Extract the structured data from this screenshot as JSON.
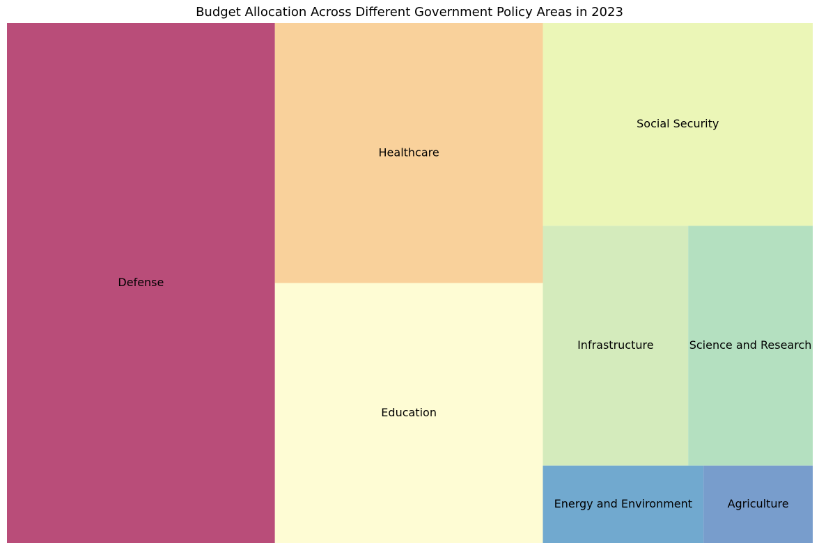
{
  "chart_data": {
    "type": "treemap",
    "title": "Budget Allocation Across Different Government Policy Areas in 2023",
    "xlabel": "",
    "ylabel": "",
    "grid": false,
    "axes_visible": false,
    "legend": "none",
    "categories": [
      "Defense",
      "Healthcare",
      "Education",
      "Social Security",
      "Infrastructure",
      "Science and Research",
      "Energy and Environment",
      "Agriculture"
    ],
    "values": [
      28,
      14,
      14,
      11,
      7,
      6,
      2.5,
      1.7
    ],
    "colors": [
      "#b94d79",
      "#f9d19b",
      "#fefcd4",
      "#ebf6b7",
      "#d4ebbc",
      "#b4e0c0",
      "#71a9cf",
      "#789dcc"
    ]
  }
}
